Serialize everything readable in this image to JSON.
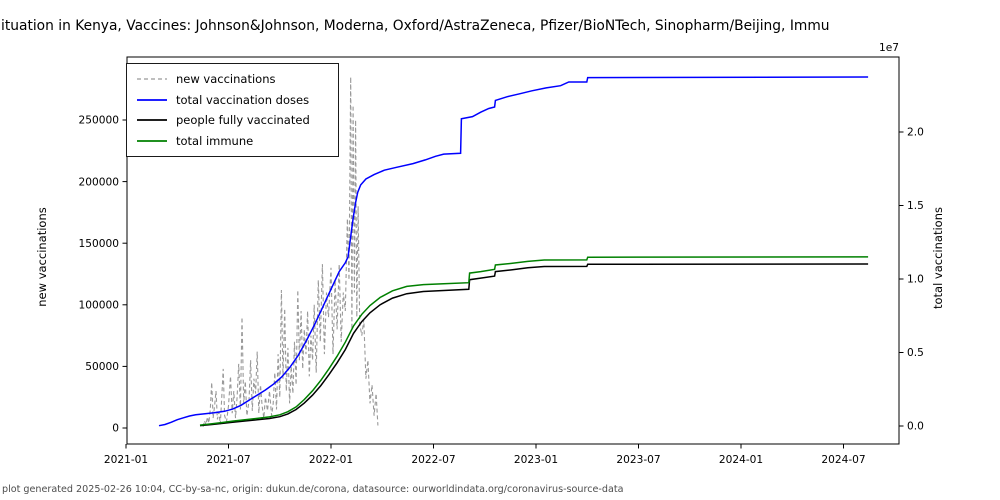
{
  "title": "ituation in Kenya, Vaccines: Johnson&Johnson, Moderna, Oxford/AstraZeneca, Pfizer/BioNTech, Sinopharm/Beijing, Immu",
  "footer": "plot generated 2025-02-26 10:04, CC-by-sa-nc, origin: dukun.de/corona, datasource: ourworldindata.org/coronavirus-source-data",
  "legend": {
    "items": [
      {
        "label": "new vaccinations",
        "color": "#999999",
        "dashed": true
      },
      {
        "label": "total vaccination doses",
        "color": "#0000ff",
        "dashed": false
      },
      {
        "label": "people fully vaccinated",
        "color": "#000000",
        "dashed": false
      },
      {
        "label": "total immune",
        "color": "#008000",
        "dashed": false
      }
    ]
  },
  "chart_data": {
    "type": "line",
    "x_axis": {
      "unit": "decimal_year",
      "ticks": [
        {
          "t": 2021.0,
          "label": "2021-01"
        },
        {
          "t": 2021.5,
          "label": "2021-07"
        },
        {
          "t": 2022.0,
          "label": "2022-01"
        },
        {
          "t": 2022.5,
          "label": "2022-07"
        },
        {
          "t": 2023.0,
          "label": "2023-01"
        },
        {
          "t": 2023.5,
          "label": "2023-07"
        },
        {
          "t": 2024.0,
          "label": "2024-01"
        },
        {
          "t": 2024.5,
          "label": "2024-07"
        }
      ]
    },
    "y_left": {
      "label": "new vaccinations",
      "ticks": [
        {
          "v": 0,
          "label": "0"
        },
        {
          "v": 50000,
          "label": "50000"
        },
        {
          "v": 100000,
          "label": "100000"
        },
        {
          "v": 150000,
          "label": "150000"
        },
        {
          "v": 200000,
          "label": "200000"
        },
        {
          "v": 250000,
          "label": "250000"
        }
      ],
      "range": [
        0,
        250000
      ]
    },
    "y_right": {
      "label": "total vaccinations",
      "offset_text": "1e7",
      "ticks": [
        {
          "v": 0,
          "label": "0.0"
        },
        {
          "v": 5000000,
          "label": "0.5"
        },
        {
          "v": 10000000,
          "label": "1.0"
        },
        {
          "v": 15000000,
          "label": "1.5"
        },
        {
          "v": 20000000,
          "label": "2.0"
        }
      ],
      "range": [
        0,
        20000000
      ]
    },
    "series": [
      {
        "name": "new vaccinations",
        "axis": "left",
        "color": "#999999",
        "dashed": true,
        "points": [
          [
            2021.376,
            1000
          ],
          [
            2021.383,
            6000
          ],
          [
            2021.39,
            2500
          ],
          [
            2021.397,
            9000
          ],
          [
            2021.404,
            4000
          ],
          [
            2021.411,
            15000
          ],
          [
            2021.418,
            37000
          ],
          [
            2021.425,
            8000
          ],
          [
            2021.432,
            18000
          ],
          [
            2021.439,
            30000
          ],
          [
            2021.446,
            7000
          ],
          [
            2021.453,
            13000
          ],
          [
            2021.46,
            3000
          ],
          [
            2021.467,
            24000
          ],
          [
            2021.474,
            48000
          ],
          [
            2021.481,
            10000
          ],
          [
            2021.49,
            5000
          ],
          [
            2021.5,
            18000
          ],
          [
            2021.51,
            42000
          ],
          [
            2021.518,
            12000
          ],
          [
            2021.526,
            30000
          ],
          [
            2021.534,
            8000
          ],
          [
            2021.542,
            25000
          ],
          [
            2021.55,
            52000
          ],
          [
            2021.558,
            15000
          ],
          [
            2021.566,
            90000
          ],
          [
            2021.574,
            20000
          ],
          [
            2021.582,
            38000
          ],
          [
            2021.59,
            10000
          ],
          [
            2021.6,
            22000
          ],
          [
            2021.608,
            55000
          ],
          [
            2021.616,
            14000
          ],
          [
            2021.624,
            40000
          ],
          [
            2021.632,
            28000
          ],
          [
            2021.64,
            62000
          ],
          [
            2021.648,
            12000
          ],
          [
            2021.656,
            35000
          ],
          [
            2021.664,
            18000
          ],
          [
            2021.672,
            8000
          ],
          [
            2021.68,
            25000
          ],
          [
            2021.69,
            14000
          ],
          [
            2021.7,
            30000
          ],
          [
            2021.71,
            10000
          ],
          [
            2021.718,
            20000
          ],
          [
            2021.726,
            45000
          ],
          [
            2021.734,
            15000
          ],
          [
            2021.742,
            60000
          ],
          [
            2021.75,
            25000
          ],
          [
            2021.758,
            112000
          ],
          [
            2021.766,
            40000
          ],
          [
            2021.774,
            97000
          ],
          [
            2021.782,
            30000
          ],
          [
            2021.79,
            65000
          ],
          [
            2021.798,
            20000
          ],
          [
            2021.806,
            50000
          ],
          [
            2021.814,
            28000
          ],
          [
            2021.822,
            70000
          ],
          [
            2021.83,
            35000
          ],
          [
            2021.838,
            112000
          ],
          [
            2021.846,
            55000
          ],
          [
            2021.854,
            95000
          ],
          [
            2021.862,
            48000
          ],
          [
            2021.87,
            80000
          ],
          [
            2021.878,
            60000
          ],
          [
            2021.886,
            95000
          ],
          [
            2021.894,
            42000
          ],
          [
            2021.902,
            75000
          ],
          [
            2021.91,
            55000
          ],
          [
            2021.918,
            100000
          ],
          [
            2021.928,
            45000
          ],
          [
            2021.938,
            120000
          ],
          [
            2021.948,
            70000
          ],
          [
            2021.958,
            133000
          ],
          [
            2021.968,
            60000
          ],
          [
            2021.978,
            110000
          ],
          [
            2021.988,
            90000
          ],
          [
            2022.0,
            130000
          ],
          [
            2022.01,
            60000
          ],
          [
            2022.02,
            120000
          ],
          [
            2022.03,
            80000
          ],
          [
            2022.04,
            133000
          ],
          [
            2022.05,
            70000
          ],
          [
            2022.06,
            110000
          ],
          [
            2022.07,
            95000
          ],
          [
            2022.08,
            170000
          ],
          [
            2022.088,
            120000
          ],
          [
            2022.096,
            285000
          ],
          [
            2022.102,
            80000
          ],
          [
            2022.108,
            262000
          ],
          [
            2022.114,
            110000
          ],
          [
            2022.12,
            250000
          ],
          [
            2022.126,
            90000
          ],
          [
            2022.132,
            180000
          ],
          [
            2022.14,
            85000
          ],
          [
            2022.15,
            75000
          ],
          [
            2022.16,
            88000
          ],
          [
            2022.17,
            40000
          ],
          [
            2022.18,
            55000
          ],
          [
            2022.19,
            20000
          ],
          [
            2022.2,
            35000
          ],
          [
            2022.21,
            10000
          ],
          [
            2022.22,
            28000
          ],
          [
            2022.229,
            2000
          ]
        ]
      },
      {
        "name": "total vaccination doses",
        "axis": "right",
        "color": "#0000ff",
        "dashed": false,
        "points": [
          [
            2021.161,
            20000
          ],
          [
            2021.19,
            100000
          ],
          [
            2021.22,
            250000
          ],
          [
            2021.25,
            430000
          ],
          [
            2021.28,
            560000
          ],
          [
            2021.31,
            680000
          ],
          [
            2021.34,
            760000
          ],
          [
            2021.38,
            820000
          ],
          [
            2021.43,
            900000
          ],
          [
            2021.48,
            1000000
          ],
          [
            2021.52,
            1150000
          ],
          [
            2021.56,
            1400000
          ],
          [
            2021.6,
            1750000
          ],
          [
            2021.64,
            2100000
          ],
          [
            2021.68,
            2450000
          ],
          [
            2021.72,
            2850000
          ],
          [
            2021.76,
            3350000
          ],
          [
            2021.8,
            4000000
          ],
          [
            2021.84,
            4800000
          ],
          [
            2021.88,
            5800000
          ],
          [
            2021.92,
            6900000
          ],
          [
            2021.95,
            7800000
          ],
          [
            2021.98,
            8700000
          ],
          [
            2022.01,
            9600000
          ],
          [
            2022.04,
            10500000
          ],
          [
            2022.07,
            11100000
          ],
          [
            2022.083,
            11500000
          ],
          [
            2022.09,
            12200000
          ],
          [
            2022.1,
            13300000
          ],
          [
            2022.11,
            14300000
          ],
          [
            2022.12,
            15200000
          ],
          [
            2022.13,
            15900000
          ],
          [
            2022.145,
            16400000
          ],
          [
            2022.17,
            16800000
          ],
          [
            2022.21,
            17100000
          ],
          [
            2022.26,
            17400000
          ],
          [
            2022.32,
            17600000
          ],
          [
            2022.4,
            17850000
          ],
          [
            2022.46,
            18100000
          ],
          [
            2022.51,
            18350000
          ],
          [
            2022.55,
            18500000
          ],
          [
            2022.632,
            18550000
          ],
          [
            2022.636,
            20900000
          ],
          [
            2022.69,
            21050000
          ],
          [
            2022.73,
            21350000
          ],
          [
            2022.77,
            21600000
          ],
          [
            2022.798,
            21700000
          ],
          [
            2022.802,
            22150000
          ],
          [
            2022.86,
            22400000
          ],
          [
            2022.92,
            22600000
          ],
          [
            2022.98,
            22800000
          ],
          [
            2023.05,
            23000000
          ],
          [
            2023.12,
            23150000
          ],
          [
            2023.16,
            23400000
          ],
          [
            2023.248,
            23400000
          ],
          [
            2023.252,
            23700000
          ],
          [
            2024.62,
            23740000
          ]
        ]
      },
      {
        "name": "people fully vaccinated",
        "axis": "right",
        "color": "#000000",
        "dashed": false,
        "points": [
          [
            2021.361,
            30000
          ],
          [
            2021.42,
            100000
          ],
          [
            2021.47,
            180000
          ],
          [
            2021.52,
            260000
          ],
          [
            2021.58,
            340000
          ],
          [
            2021.64,
            420000
          ],
          [
            2021.7,
            510000
          ],
          [
            2021.75,
            630000
          ],
          [
            2021.79,
            820000
          ],
          [
            2021.83,
            1120000
          ],
          [
            2021.87,
            1560000
          ],
          [
            2021.91,
            2100000
          ],
          [
            2021.95,
            2750000
          ],
          [
            2021.99,
            3500000
          ],
          [
            2022.03,
            4300000
          ],
          [
            2022.07,
            5200000
          ],
          [
            2022.11,
            6300000
          ],
          [
            2022.15,
            7100000
          ],
          [
            2022.19,
            7700000
          ],
          [
            2022.24,
            8250000
          ],
          [
            2022.3,
            8700000
          ],
          [
            2022.37,
            9000000
          ],
          [
            2022.45,
            9150000
          ],
          [
            2022.55,
            9220000
          ],
          [
            2022.672,
            9300000
          ],
          [
            2022.676,
            9950000
          ],
          [
            2022.73,
            10060000
          ],
          [
            2022.798,
            10200000
          ],
          [
            2022.802,
            10500000
          ],
          [
            2022.88,
            10620000
          ],
          [
            2022.96,
            10760000
          ],
          [
            2023.04,
            10850000
          ],
          [
            2023.248,
            10860000
          ],
          [
            2023.252,
            11000000
          ],
          [
            2024.62,
            11020000
          ]
        ]
      },
      {
        "name": "total immune",
        "axis": "right",
        "color": "#008000",
        "dashed": false,
        "points": [
          [
            2021.361,
            60000
          ],
          [
            2021.42,
            150000
          ],
          [
            2021.47,
            240000
          ],
          [
            2021.52,
            330000
          ],
          [
            2021.58,
            420000
          ],
          [
            2021.64,
            520000
          ],
          [
            2021.7,
            620000
          ],
          [
            2021.75,
            760000
          ],
          [
            2021.79,
            970000
          ],
          [
            2021.83,
            1300000
          ],
          [
            2021.87,
            1800000
          ],
          [
            2021.91,
            2400000
          ],
          [
            2021.95,
            3100000
          ],
          [
            2021.99,
            3900000
          ],
          [
            2022.03,
            4750000
          ],
          [
            2022.07,
            5700000
          ],
          [
            2022.11,
            6800000
          ],
          [
            2022.15,
            7600000
          ],
          [
            2022.19,
            8200000
          ],
          [
            2022.24,
            8750000
          ],
          [
            2022.3,
            9200000
          ],
          [
            2022.37,
            9500000
          ],
          [
            2022.45,
            9620000
          ],
          [
            2022.55,
            9680000
          ],
          [
            2022.672,
            9750000
          ],
          [
            2022.676,
            10400000
          ],
          [
            2022.73,
            10500000
          ],
          [
            2022.798,
            10650000
          ],
          [
            2022.802,
            10950000
          ],
          [
            2022.88,
            11060000
          ],
          [
            2022.96,
            11200000
          ],
          [
            2023.04,
            11290000
          ],
          [
            2023.248,
            11300000
          ],
          [
            2023.252,
            11480000
          ],
          [
            2024.62,
            11500000
          ]
        ]
      }
    ]
  }
}
